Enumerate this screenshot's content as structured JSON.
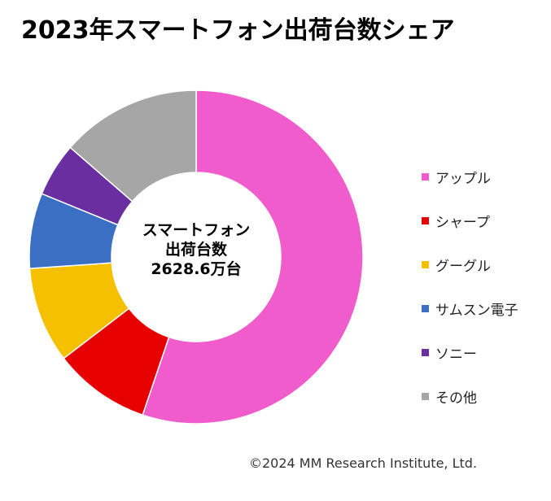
{
  "title": "2023年スマートフォン出荷台数シェア",
  "center_label": [
    "スマートフォン",
    "出荷台数",
    "2628.6万台"
  ],
  "copyright": "©2024 MM Research Institute, Ltd.",
  "chart_data": {
    "type": "pie",
    "title": "2023年スマートフォン出荷台数シェア",
    "donut": true,
    "categories": [
      "アップル",
      "シャープ",
      "グーグル",
      "サムスン電子",
      "ソニー",
      "その他"
    ],
    "values": [
      55.2,
      9.4,
      9.3,
      7.3,
      5.2,
      13.6
    ],
    "colors": [
      "#f05ccc",
      "#e60000",
      "#f5c000",
      "#3a6fc4",
      "#6a2ea0",
      "#a6a6a6"
    ],
    "legend": "right"
  }
}
